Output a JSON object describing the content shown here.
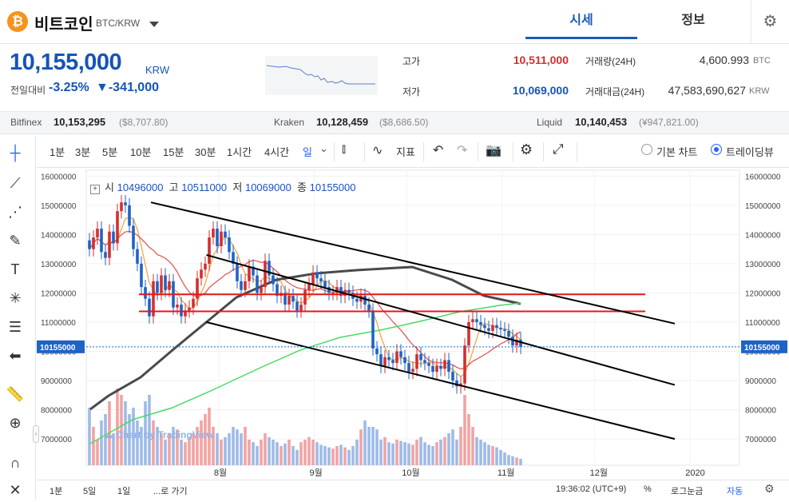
{
  "coin": {
    "icon": "bitcoin-icon",
    "icon_glyph": "₿",
    "name": "비트코인",
    "pair": "BTC/KRW"
  },
  "tabs": {
    "market": "시세",
    "info": "정보"
  },
  "price": {
    "value": "10,155,000",
    "unit": "KRW",
    "change_label": "전일대비",
    "change_pct": "-3.25%",
    "change_amt": "▼-341,000"
  },
  "stats": {
    "high_label": "고가",
    "high": "10,511,000",
    "low_label": "저가",
    "low": "10,069,000",
    "volume_label": "거래량(24H)",
    "volume": "4,600.993",
    "volume_unit": "BTC",
    "amount_label": "거래대금(24H)",
    "amount": "47,583,690,627",
    "amount_unit": "KRW"
  },
  "exchanges": [
    {
      "name": "Bitfinex",
      "value": "10,153,295",
      "sub": "($8,707.80)"
    },
    {
      "name": "Kraken",
      "value": "10,128,459",
      "sub": "($8,686.50)"
    },
    {
      "name": "Liquid",
      "value": "10,140,453",
      "sub": "(¥947,821.00)"
    }
  ],
  "toolbar": {
    "intervals": [
      "1분",
      "3분",
      "5분",
      "10분",
      "15분",
      "30분",
      "1시간",
      "4시간",
      "일"
    ],
    "indicator": "지표",
    "basic_chart": "기본 차트",
    "trading_view": "트레이딩뷰"
  },
  "ohlc": {
    "o_label": "시",
    "o": "10496000",
    "h_label": "고",
    "h": "10511000",
    "l_label": "저",
    "l": "10069000",
    "c_label": "종",
    "c": "10155000"
  },
  "watermark": "Chart by TradingView",
  "bottom": {
    "ranges": [
      "1분",
      "5일",
      "1일"
    ],
    "goto": "...로 가기",
    "time": "19:36:02 (UTC+9)",
    "pct": "%",
    "log": "로그눈금",
    "auto": "자동"
  },
  "colors": {
    "accent": "#1554b8",
    "up": "#e53935",
    "down": "#1e63c6"
  },
  "chart_data": {
    "type": "candlestick",
    "ylabels": [
      "16000000",
      "15000000",
      "14000000",
      "13000000",
      "12000000",
      "11000000",
      "10000000",
      "9000000",
      "8000000",
      "7000000"
    ],
    "xlabels": [
      "8월",
      "9월",
      "10월",
      "11월",
      "12월",
      "2020"
    ],
    "ylim": [
      6100000,
      16200000
    ],
    "last_price": "10155000",
    "resistance_levels": [
      11950000,
      11370000
    ],
    "channel_lines": [
      {
        "x1": "2019-07-10",
        "y1": 15100000,
        "x2": "2019-12-27",
        "y2": 10950000
      },
      {
        "x1": "2019-07-28",
        "y1": 13300000,
        "x2": "2019-12-27",
        "y2": 8850000
      },
      {
        "x1": "2019-07-28",
        "y1": 11000000,
        "x2": "2019-12-27",
        "y2": 7000000
      }
    ],
    "closes": [
      13500000,
      13900000,
      14200000,
      13400000,
      13200000,
      14100000,
      13700000,
      14800000,
      15100000,
      15000000,
      14300000,
      13500000,
      13000000,
      12200000,
      11800000,
      11200000,
      12400000,
      12000000,
      12600000,
      12100000,
      12400000,
      11500000,
      11600000,
      11200000,
      11400000,
      11500000,
      11800000,
      12500000,
      12800000,
      13000000,
      13900000,
      14200000,
      13600000,
      14100000,
      13900000,
      13400000,
      13000000,
      12400000,
      12100000,
      12400000,
      12900000,
      12600000,
      12000000,
      12200000,
      13100000,
      12600000,
      12300000,
      11900000,
      12000000,
      11600000,
      11900000,
      11700000,
      11400000,
      11600000,
      12100000,
      12300000,
      12700000,
      12500000,
      12400000,
      12200000,
      12000000,
      12000000,
      12200000,
      11900000,
      12100000,
      12000000,
      11800000,
      11700000,
      11900000,
      11600000,
      11400000,
      10100000,
      9900000,
      9500000,
      9800000,
      9700000,
      9600000,
      10000000,
      9800000,
      9600000,
      9300000,
      9400000,
      9900000,
      9700000,
      9600000,
      9500000,
      9300000,
      9500000,
      9400000,
      9700000,
      9300000,
      9000000,
      8800000,
      8900000,
      10200000,
      11000000,
      11100000,
      11000000,
      10900000,
      10800000,
      10700000,
      10900000,
      10800000,
      10750000,
      10700000,
      10500000,
      10200000,
      10400000,
      10155000
    ],
    "volumes": [
      0.45,
      0.3,
      0.2,
      0.35,
      0.4,
      0.5,
      0.25,
      0.6,
      0.55,
      0.5,
      0.4,
      0.45,
      0.35,
      0.3,
      0.5,
      0.55,
      0.35,
      0.3,
      0.25,
      0.2,
      0.25,
      0.3,
      0.28,
      0.2,
      0.18,
      0.22,
      0.25,
      0.3,
      0.35,
      0.4,
      0.45,
      0.3,
      0.25,
      0.2,
      0.22,
      0.25,
      0.3,
      0.28,
      0.25,
      0.3,
      0.2,
      0.18,
      0.15,
      0.2,
      0.25,
      0.22,
      0.2,
      0.18,
      0.15,
      0.17,
      0.2,
      0.15,
      0.12,
      0.18,
      0.2,
      0.22,
      0.2,
      0.18,
      0.16,
      0.15,
      0.14,
      0.13,
      0.15,
      0.16,
      0.14,
      0.12,
      0.15,
      0.2,
      0.28,
      0.35,
      0.3,
      0.3,
      0.28,
      0.2,
      0.22,
      0.18,
      0.17,
      0.2,
      0.19,
      0.18,
      0.17,
      0.16,
      0.2,
      0.22,
      0.18,
      0.16,
      0.15,
      0.18,
      0.2,
      0.22,
      0.25,
      0.28,
      0.2,
      0.3,
      0.55,
      0.4,
      0.3,
      0.22,
      0.2,
      0.18,
      0.16,
      0.15,
      0.14,
      0.12,
      0.1,
      0.08,
      0.07,
      0.06,
      0.05
    ]
  }
}
